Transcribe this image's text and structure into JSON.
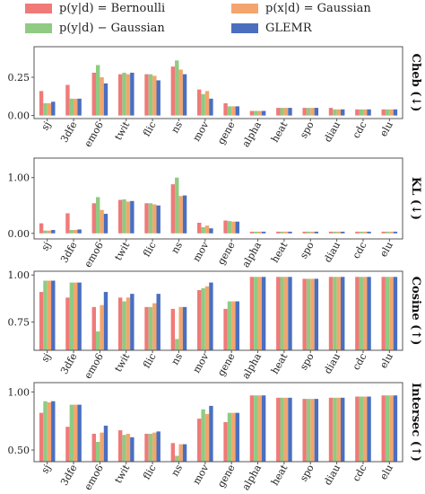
{
  "legend": [
    {
      "label": "p(y|d) = Bernoulli",
      "color": "#f07a78"
    },
    {
      "label": "p(x|d) = Gaussian",
      "color": "#f4a56d"
    },
    {
      "label": "p(y|d) − Gaussian",
      "color": "#8fcb82"
    },
    {
      "label": "GLEMR",
      "color": "#4a6fbf"
    }
  ],
  "chart_data": [
    {
      "type": "bar",
      "ylabel": "Cheb (↓)",
      "ylim": [
        -0.02,
        0.45
      ],
      "yticks": [
        0.0,
        0.25
      ],
      "ytick_labels": [
        "0.00",
        "0.25"
      ],
      "categories": [
        "sj",
        "3dfe",
        "emo6",
        "twit",
        "flic",
        "ns",
        "mov",
        "gene",
        "alpha",
        "heat",
        "spo",
        "diau",
        "cdc",
        "elu"
      ],
      "series": [
        {
          "name": "p(y|d) = Bernoulli",
          "color": "#f07a78",
          "values": [
            0.16,
            0.2,
            0.28,
            0.27,
            0.27,
            0.32,
            0.17,
            0.08,
            0.03,
            0.05,
            0.05,
            0.05,
            0.04,
            0.04
          ]
        },
        {
          "name": "p(y|d) − Gaussian",
          "color": "#8fcb82",
          "values": [
            0.08,
            0.11,
            0.33,
            0.28,
            0.27,
            0.36,
            0.14,
            0.06,
            0.03,
            0.05,
            0.05,
            0.04,
            0.04,
            0.04
          ]
        },
        {
          "name": "p(x|d) = Gaussian",
          "color": "#f4a56d",
          "values": [
            0.08,
            0.11,
            0.25,
            0.27,
            0.26,
            0.3,
            0.16,
            0.06,
            0.03,
            0.05,
            0.05,
            0.04,
            0.04,
            0.04
          ]
        },
        {
          "name": "GLEMR",
          "color": "#4a6fbf",
          "values": [
            0.09,
            0.11,
            0.21,
            0.28,
            0.23,
            0.27,
            0.11,
            0.06,
            0.03,
            0.05,
            0.05,
            0.04,
            0.04,
            0.04
          ]
        }
      ]
    },
    {
      "type": "bar",
      "ylabel": "KL (↓)",
      "ylim": [
        -0.1,
        1.35
      ],
      "yticks": [
        0.0,
        1.0
      ],
      "ytick_labels": [
        "0.00",
        "1.00"
      ],
      "categories": [
        "sj",
        "3dfe",
        "emo6",
        "twit",
        "flic",
        "ns",
        "mov",
        "gene",
        "alpha",
        "heat",
        "spo",
        "diau",
        "cdc",
        "elu"
      ],
      "series": [
        {
          "name": "p(y|d) = Bernoulli",
          "color": "#f07a78",
          "values": [
            0.18,
            0.36,
            0.54,
            0.6,
            0.54,
            0.88,
            0.19,
            0.23,
            0.03,
            0.03,
            0.03,
            0.03,
            0.03,
            0.03
          ]
        },
        {
          "name": "p(y|d) − Gaussian",
          "color": "#8fcb82",
          "values": [
            0.05,
            0.06,
            0.65,
            0.61,
            0.54,
            1.0,
            0.11,
            0.22,
            0.03,
            0.03,
            0.03,
            0.03,
            0.03,
            0.03
          ]
        },
        {
          "name": "p(x|d) = Gaussian",
          "color": "#f4a56d",
          "values": [
            0.05,
            0.06,
            0.42,
            0.57,
            0.52,
            0.67,
            0.14,
            0.21,
            0.03,
            0.03,
            0.03,
            0.03,
            0.03,
            0.03
          ]
        },
        {
          "name": "GLEMR",
          "color": "#4a6fbf",
          "values": [
            0.06,
            0.07,
            0.35,
            0.58,
            0.5,
            0.68,
            0.09,
            0.21,
            0.03,
            0.03,
            0.03,
            0.03,
            0.03,
            0.03
          ]
        }
      ]
    },
    {
      "type": "bar",
      "ylabel": "Cosine (↑)",
      "ylim": [
        0.6,
        1.02
      ],
      "yticks": [
        0.75,
        1.0
      ],
      "ytick_labels": [
        "0.75",
        "1.00"
      ],
      "categories": [
        "sj",
        "3dfe",
        "emo6",
        "twit",
        "flic",
        "ns",
        "mov",
        "gene",
        "alpha",
        "heat",
        "spo",
        "diau",
        "cdc",
        "elu"
      ],
      "series": [
        {
          "name": "p(y|d) = Bernoulli",
          "color": "#f07a78",
          "values": [
            0.91,
            0.88,
            0.83,
            0.88,
            0.83,
            0.82,
            0.92,
            0.82,
            0.99,
            0.99,
            0.98,
            0.99,
            0.99,
            0.99
          ]
        },
        {
          "name": "p(y|d) − Gaussian",
          "color": "#8fcb82",
          "values": [
            0.97,
            0.96,
            0.7,
            0.86,
            0.83,
            0.66,
            0.93,
            0.86,
            0.99,
            0.99,
            0.98,
            0.99,
            0.99,
            0.99
          ]
        },
        {
          "name": "p(x|d) = Gaussian",
          "color": "#f4a56d",
          "values": [
            0.97,
            0.96,
            0.84,
            0.88,
            0.85,
            0.83,
            0.94,
            0.86,
            0.99,
            0.99,
            0.98,
            0.99,
            0.99,
            0.99
          ]
        },
        {
          "name": "GLEMR",
          "color": "#4a6fbf",
          "values": [
            0.97,
            0.96,
            0.91,
            0.9,
            0.9,
            0.83,
            0.96,
            0.86,
            0.99,
            0.99,
            0.98,
            0.99,
            0.99,
            0.99
          ]
        }
      ]
    },
    {
      "type": "bar",
      "ylabel": "Intersec (↑)",
      "ylim": [
        0.4,
        1.08
      ],
      "yticks": [
        0.5,
        1.0
      ],
      "ytick_labels": [
        "0.50",
        "1.00"
      ],
      "categories": [
        "sj",
        "3dfe",
        "emo6",
        "twit",
        "flic",
        "ns",
        "mov",
        "gene",
        "alpha",
        "heat",
        "spo",
        "diau",
        "cdc",
        "elu"
      ],
      "series": [
        {
          "name": "p(y|d) = Bernoulli",
          "color": "#f07a78",
          "values": [
            0.82,
            0.7,
            0.64,
            0.67,
            0.64,
            0.56,
            0.77,
            0.74,
            0.97,
            0.95,
            0.94,
            0.95,
            0.96,
            0.97
          ]
        },
        {
          "name": "p(y|d) − Gaussian",
          "color": "#8fcb82",
          "values": [
            0.92,
            0.89,
            0.57,
            0.63,
            0.64,
            0.45,
            0.85,
            0.82,
            0.97,
            0.95,
            0.94,
            0.95,
            0.96,
            0.97
          ]
        },
        {
          "name": "p(x|d) = Gaussian",
          "color": "#f4a56d",
          "values": [
            0.91,
            0.89,
            0.65,
            0.64,
            0.65,
            0.55,
            0.81,
            0.82,
            0.97,
            0.95,
            0.94,
            0.95,
            0.96,
            0.97
          ]
        },
        {
          "name": "GLEMR",
          "color": "#4a6fbf",
          "values": [
            0.92,
            0.89,
            0.71,
            0.61,
            0.66,
            0.55,
            0.88,
            0.82,
            0.97,
            0.95,
            0.94,
            0.95,
            0.96,
            0.97
          ]
        }
      ]
    }
  ]
}
